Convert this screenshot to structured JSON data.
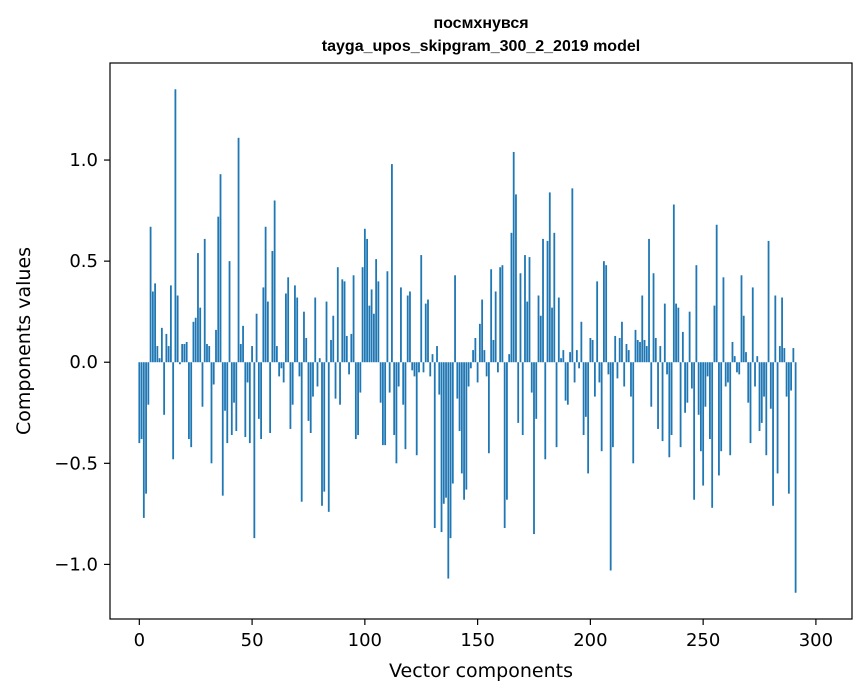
{
  "chart_data": {
    "type": "bar",
    "title": "посмхнувся",
    "subtitle": "tayga_upos_skipgram_300_2_2019 model",
    "xlabel": "Vector components",
    "ylabel": "Components values",
    "xlim": [
      -13,
      316
    ],
    "ylim": [
      -1.27,
      1.48
    ],
    "xticks": [
      0,
      50,
      100,
      150,
      200,
      250,
      300
    ],
    "xtick_labels": [
      "0",
      "50",
      "100",
      "150",
      "200",
      "250",
      "300"
    ],
    "yticks": [
      -1.0,
      -0.5,
      0.0,
      0.5,
      1.0
    ],
    "ytick_labels": [
      "−1.0",
      "−0.5",
      "0.0",
      "0.5",
      "1.0"
    ],
    "color": "#1f77b4",
    "values": [
      -0.4,
      -0.38,
      -0.77,
      -0.65,
      -0.21,
      0.67,
      0.35,
      0.39,
      0.08,
      0.02,
      0.17,
      -0.26,
      0.14,
      0.08,
      0.38,
      -0.48,
      1.35,
      0.33,
      -0.01,
      0.09,
      0.09,
      0.1,
      -0.38,
      -0.42,
      0.2,
      0.22,
      0.54,
      0.27,
      -0.22,
      0.61,
      0.09,
      0.08,
      -0.5,
      -0.11,
      0.16,
      0.72,
      0.93,
      -0.66,
      -0.24,
      -0.4,
      0.5,
      -0.36,
      -0.2,
      -0.34,
      1.11,
      0.09,
      0.18,
      -0.37,
      -0.1,
      -0.4,
      0.08,
      -0.87,
      0.24,
      -0.28,
      -0.38,
      0.37,
      0.67,
      0.3,
      -0.35,
      0.55,
      0.8,
      0.08,
      -0.07,
      -0.03,
      -0.1,
      0.34,
      0.42,
      -0.33,
      -0.21,
      0.38,
      0.32,
      -0.07,
      -0.69,
      0.25,
      0.12,
      -0.29,
      -0.35,
      -0.17,
      0.32,
      -0.12,
      0.02,
      -0.71,
      -0.64,
      0.3,
      -0.74,
      0.11,
      0.23,
      -0.18,
      0.47,
      -0.21,
      0.41,
      0.4,
      0.13,
      -0.06,
      0.14,
      0.43,
      -0.38,
      -0.36,
      -0.15,
      0.47,
      0.66,
      0.61,
      0.28,
      0.36,
      0.24,
      0.51,
      0.4,
      -0.2,
      -0.41,
      -0.41,
      0.45,
      -0.15,
      0.98,
      -0.36,
      -0.5,
      -0.12,
      0.37,
      -0.21,
      -0.43,
      0.33,
      0.35,
      -0.04,
      -0.07,
      -0.46,
      -0.05,
      0.53,
      -0.05,
      0.29,
      0.31,
      -0.07,
      0.04,
      -0.82,
      0.08,
      -0.16,
      -0.84,
      -0.7,
      -0.67,
      -1.07,
      -0.87,
      -0.6,
      0.43,
      -0.18,
      -0.34,
      -0.55,
      -0.68,
      -0.63,
      -0.12,
      -0.03,
      0.06,
      0.12,
      -0.1,
      0.19,
      0.31,
      0.06,
      -0.07,
      -0.45,
      0.46,
      0.11,
      0.35,
      -0.05,
      0.47,
      0.48,
      -0.82,
      -0.68,
      0.04,
      0.64,
      1.04,
      0.83,
      -0.3,
      0.44,
      -0.36,
      0.53,
      0.3,
      0.52,
      -0.15,
      -0.85,
      -0.28,
      0.33,
      0.23,
      0.61,
      -0.48,
      0.6,
      0.84,
      0.27,
      0.64,
      -0.42,
      0.32,
      0.02,
      0.06,
      -0.19,
      -0.21,
      0.05,
      0.86,
      -0.1,
      0.06,
      -0.03,
      0.2,
      -0.36,
      -0.27,
      -0.55,
      0.12,
      0.11,
      -0.17,
      0.4,
      -0.1,
      -0.44,
      0.5,
      0.48,
      -0.06,
      -1.03,
      -0.42,
      0.13,
      -0.08,
      0.12,
      0.2,
      -0.12,
      0.09,
      0.06,
      -0.17,
      -0.5,
      0.16,
      0.11,
      0.1,
      0.33,
      0.11,
      0.08,
      0.61,
      -0.22,
      0.44,
      0.12,
      -0.33,
      0.08,
      -0.39,
      0.29,
      -0.06,
      -0.47,
      -0.36,
      0.78,
      0.29,
      0.27,
      -0.42,
      0.15,
      -0.25,
      -0.2,
      0.25,
      -0.13,
      -0.68,
      0.48,
      -0.26,
      -0.44,
      -0.61,
      -0.22,
      -0.07,
      -0.38,
      -0.72,
      0.28,
      0.68,
      -0.56,
      -0.44,
      0.42,
      -0.12,
      -0.1,
      -0.46,
      0.1,
      0.03,
      -0.05,
      -0.06,
      0.43,
      0.23,
      0.05,
      -0.2,
      -0.4,
      0.37,
      -0.12,
      0.03,
      -0.34,
      -0.3,
      -0.17,
      -0.46,
      0.6,
      -0.23,
      -0.71,
      0.33,
      -0.55,
      0.08,
      0.32,
      0.07,
      -0.17,
      -0.65,
      -0.14,
      0.07,
      -1.14
    ]
  }
}
